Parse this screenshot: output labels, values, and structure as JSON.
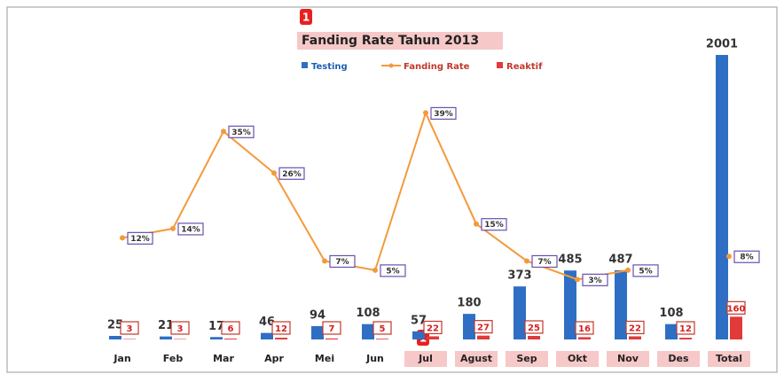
{
  "chart_data": {
    "type": "bar-line",
    "title": "Fanding Rate Tahun 2013",
    "categories": [
      "Jan",
      "Feb",
      "Mar",
      "Apr",
      "Mei",
      "Jun",
      "Jul",
      "Agust",
      "Sep",
      "Okt",
      "Nov",
      "Des",
      "Total"
    ],
    "series": [
      {
        "name": "Testing",
        "type": "bar",
        "color": "#2e6fc4",
        "values": [
          25,
          21,
          17,
          46,
          94,
          108,
          57,
          180,
          373,
          485,
          487,
          108,
          2001
        ]
      },
      {
        "name": "Fanding Rate",
        "type": "line",
        "color": "#f39a3c",
        "values": [
          12,
          14,
          35,
          26,
          7,
          5,
          39,
          15,
          7,
          3,
          5,
          null,
          8
        ],
        "value_labels": [
          "12%",
          "14%",
          "35%",
          "26%",
          "7%",
          "5%",
          "39%",
          "15%",
          "7%",
          "3%",
          "5%",
          null,
          "8%"
        ]
      },
      {
        "name": "Reaktif",
        "type": "bar",
        "color": "#e03a3a",
        "values": [
          3,
          3,
          6,
          12,
          7,
          5,
          22,
          27,
          25,
          16,
          22,
          12,
          160
        ]
      }
    ],
    "annotations": [
      "1",
      "1"
    ]
  }
}
